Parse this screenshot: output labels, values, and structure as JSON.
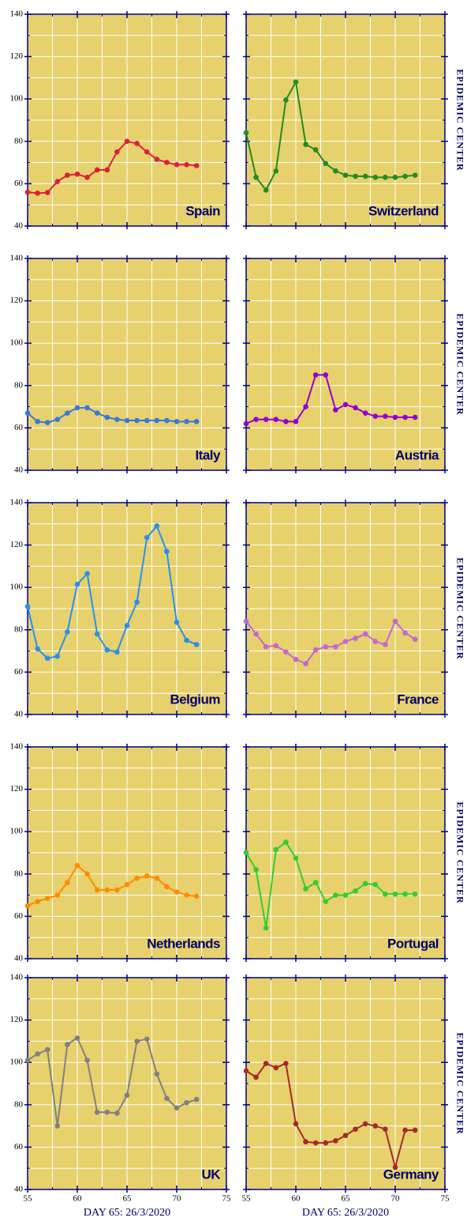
{
  "chart_data": [
    {
      "type": "line",
      "title": "Spain",
      "color": "#dc1f3c",
      "x": [
        55,
        56,
        57,
        58,
        59,
        60,
        61,
        62,
        63,
        64,
        65,
        66,
        67,
        68,
        69,
        70,
        71,
        72
      ],
      "values": [
        56,
        55.5,
        55.8,
        61,
        64,
        64.5,
        63,
        66.5,
        66.5,
        75,
        80,
        79,
        75,
        71.5,
        70,
        69,
        69,
        68.5
      ],
      "xlim": [
        55,
        75
      ],
      "ylim": [
        40,
        140
      ],
      "xticks": [
        55,
        60,
        65,
        70,
        75
      ],
      "yticks": [
        40,
        60,
        80,
        100,
        120,
        140
      ],
      "minor_xticks": [
        57.5,
        62.5,
        67.5,
        72.5
      ],
      "minor_yticks": [
        50,
        70,
        90,
        110,
        130
      ],
      "grid": true,
      "show_xtick_labels": false,
      "show_ytick_labels": true
    },
    {
      "type": "line",
      "title": "Switzerland",
      "color": "#238b22",
      "x": [
        55,
        56,
        57,
        58,
        59,
        60,
        61,
        62,
        63,
        64,
        65,
        66,
        67,
        68,
        69,
        70,
        71,
        72
      ],
      "values": [
        84,
        63,
        57,
        66,
        99.5,
        108,
        78.5,
        76,
        69.5,
        66,
        64,
        63.5,
        63.5,
        63,
        63,
        63,
        63.5,
        64
      ],
      "xlim": [
        55,
        75
      ],
      "ylim": [
        40,
        140
      ],
      "xticks": [
        55,
        60,
        65,
        70,
        75
      ],
      "yticks": [
        40,
        60,
        80,
        100,
        120,
        140
      ],
      "minor_xticks": [
        57.5,
        62.5,
        67.5,
        72.5
      ],
      "minor_yticks": [
        50,
        70,
        90,
        110,
        130
      ],
      "grid": true,
      "show_xtick_labels": false,
      "show_ytick_labels": false,
      "annotation": "EPIDEMIC CENTER"
    },
    {
      "type": "line",
      "title": "Italy",
      "color": "#3a78d8",
      "x": [
        55,
        56,
        57,
        58,
        59,
        60,
        61,
        62,
        63,
        64,
        65,
        66,
        67,
        68,
        69,
        70,
        71,
        72
      ],
      "values": [
        67,
        63,
        62.5,
        64,
        67,
        69.5,
        69.5,
        67,
        65,
        64,
        63.5,
        63.5,
        63.5,
        63.5,
        63.5,
        63,
        63,
        63
      ],
      "xlim": [
        55,
        75
      ],
      "ylim": [
        40,
        140
      ],
      "xticks": [
        55,
        60,
        65,
        70,
        75
      ],
      "yticks": [
        40,
        60,
        80,
        100,
        120,
        140
      ],
      "minor_xticks": [
        57.5,
        62.5,
        67.5,
        72.5
      ],
      "minor_yticks": [
        50,
        70,
        90,
        110,
        130
      ],
      "grid": true,
      "show_xtick_labels": false,
      "show_ytick_labels": true
    },
    {
      "type": "line",
      "title": "Austria",
      "color": "#9400d3",
      "x": [
        55,
        56,
        57,
        58,
        59,
        60,
        61,
        62,
        63,
        64,
        65,
        66,
        67,
        68,
        69,
        70,
        71,
        72
      ],
      "values": [
        62,
        64,
        64,
        64,
        63,
        63,
        70,
        85,
        85,
        68.5,
        71,
        69.5,
        67,
        65.5,
        65.5,
        65,
        65,
        65
      ],
      "xlim": [
        55,
        75
      ],
      "ylim": [
        40,
        140
      ],
      "xticks": [
        55,
        60,
        65,
        70,
        75
      ],
      "yticks": [
        40,
        60,
        80,
        100,
        120,
        140
      ],
      "minor_xticks": [
        57.5,
        62.5,
        67.5,
        72.5
      ],
      "minor_yticks": [
        50,
        70,
        90,
        110,
        130
      ],
      "grid": true,
      "show_xtick_labels": false,
      "show_ytick_labels": false,
      "annotation": "EPIDEMIC CENTER"
    },
    {
      "type": "line",
      "title": "Belgium",
      "color": "#2a8ff0",
      "x": [
        55,
        56,
        57,
        58,
        59,
        60,
        61,
        62,
        63,
        64,
        65,
        66,
        67,
        68,
        69,
        70,
        71,
        72
      ],
      "values": [
        91,
        71,
        66.5,
        67.5,
        79,
        101.5,
        106.5,
        78,
        70.5,
        69.5,
        82,
        93,
        123.5,
        129,
        117,
        83.5,
        75,
        73
      ],
      "xlim": [
        55,
        75
      ],
      "ylim": [
        40,
        140
      ],
      "xticks": [
        55,
        60,
        65,
        70,
        75
      ],
      "yticks": [
        40,
        60,
        80,
        100,
        120,
        140
      ],
      "minor_xticks": [
        57.5,
        62.5,
        67.5,
        72.5
      ],
      "minor_yticks": [
        50,
        70,
        90,
        110,
        130
      ],
      "grid": true,
      "show_xtick_labels": false,
      "show_ytick_labels": true
    },
    {
      "type": "line",
      "title": "France",
      "color": "#c466d6",
      "x": [
        55,
        56,
        57,
        58,
        59,
        60,
        61,
        62,
        63,
        64,
        65,
        66,
        67,
        68,
        69,
        70,
        71,
        72
      ],
      "values": [
        84,
        78,
        72,
        72.5,
        69.5,
        66,
        64,
        70.5,
        72,
        72,
        74.5,
        76,
        78,
        74.5,
        73,
        84,
        78.5,
        75.5
      ],
      "xlim": [
        55,
        75
      ],
      "ylim": [
        40,
        140
      ],
      "xticks": [
        55,
        60,
        65,
        70,
        75
      ],
      "yticks": [
        40,
        60,
        80,
        100,
        120,
        140
      ],
      "minor_xticks": [
        57.5,
        62.5,
        67.5,
        72.5
      ],
      "minor_yticks": [
        50,
        70,
        90,
        110,
        130
      ],
      "grid": true,
      "show_xtick_labels": false,
      "show_ytick_labels": false,
      "annotation": "EPIDEMIC CENTER"
    },
    {
      "type": "line",
      "title": "Netherlands",
      "color": "#ff8c00",
      "x": [
        55,
        56,
        57,
        58,
        59,
        60,
        61,
        62,
        63,
        64,
        65,
        66,
        67,
        68,
        69,
        70,
        71,
        72
      ],
      "values": [
        65,
        67,
        68.5,
        70,
        76,
        84,
        80,
        72.5,
        72.5,
        72.5,
        75,
        78,
        79,
        78,
        74,
        71.5,
        70,
        69.5
      ],
      "xlim": [
        55,
        75
      ],
      "ylim": [
        40,
        140
      ],
      "xticks": [
        55,
        60,
        65,
        70,
        75
      ],
      "yticks": [
        40,
        60,
        80,
        100,
        120,
        140
      ],
      "minor_xticks": [
        57.5,
        62.5,
        67.5,
        72.5
      ],
      "minor_yticks": [
        50,
        70,
        90,
        110,
        130
      ],
      "grid": true,
      "show_xtick_labels": false,
      "show_ytick_labels": true
    },
    {
      "type": "line",
      "title": "Portugal",
      "color": "#32cd32",
      "x": [
        55,
        56,
        57,
        58,
        59,
        60,
        61,
        62,
        63,
        64,
        65,
        66,
        67,
        68,
        69,
        70,
        71,
        72
      ],
      "values": [
        90,
        82,
        54.5,
        91.5,
        95,
        87.5,
        73,
        76,
        67,
        70,
        70,
        72,
        75.5,
        75,
        70.5,
        70.5,
        70.5,
        70.5
      ],
      "xlim": [
        55,
        75
      ],
      "ylim": [
        40,
        140
      ],
      "xticks": [
        55,
        60,
        65,
        70,
        75
      ],
      "yticks": [
        40,
        60,
        80,
        100,
        120,
        140
      ],
      "minor_xticks": [
        57.5,
        62.5,
        67.5,
        72.5
      ],
      "minor_yticks": [
        50,
        70,
        90,
        110,
        130
      ],
      "grid": true,
      "show_xtick_labels": false,
      "show_ytick_labels": false,
      "annotation": "EPIDEMIC CENTER"
    },
    {
      "type": "line",
      "title": "UK",
      "color": "#808080",
      "x": [
        55,
        56,
        57,
        58,
        59,
        60,
        61,
        62,
        63,
        64,
        65,
        66,
        67,
        68,
        69,
        70,
        71,
        72
      ],
      "values": [
        101,
        104,
        106,
        70,
        108.5,
        111.5,
        101,
        76.5,
        76.5,
        76,
        84.5,
        110,
        111,
        94.5,
        83,
        78.5,
        81,
        82.5
      ],
      "xlim": [
        55,
        75
      ],
      "ylim": [
        40,
        140
      ],
      "xticks": [
        55,
        60,
        65,
        70,
        75
      ],
      "yticks": [
        40,
        60,
        80,
        100,
        120,
        140
      ],
      "minor_xticks": [
        57.5,
        62.5,
        67.5,
        72.5
      ],
      "minor_yticks": [
        50,
        70,
        90,
        110,
        130
      ],
      "grid": true,
      "show_xtick_labels": true,
      "show_ytick_labels": true,
      "xlabel": "DAY 65: 26/3/2020"
    },
    {
      "type": "line",
      "title": "Germany",
      "color": "#a52a2a",
      "x": [
        55,
        56,
        57,
        58,
        59,
        60,
        61,
        62,
        63,
        64,
        65,
        66,
        67,
        68,
        69,
        70,
        71,
        72
      ],
      "values": [
        96,
        93,
        99.5,
        97.5,
        99.5,
        71,
        62.5,
        62,
        62,
        63,
        65.5,
        68.5,
        71,
        70,
        68.5,
        50.5,
        68,
        68
      ],
      "xlim": [
        55,
        75
      ],
      "ylim": [
        40,
        140
      ],
      "xticks": [
        55,
        60,
        65,
        70,
        75
      ],
      "yticks": [
        40,
        60,
        80,
        100,
        120,
        140
      ],
      "minor_xticks": [
        57.5,
        62.5,
        67.5,
        72.5
      ],
      "minor_yticks": [
        50,
        70,
        90,
        110,
        130
      ],
      "grid": true,
      "show_xtick_labels": true,
      "show_ytick_labels": false,
      "xlabel": "DAY 65: 26/3/2020",
      "annotation": "EPIDEMIC CENTER"
    }
  ]
}
